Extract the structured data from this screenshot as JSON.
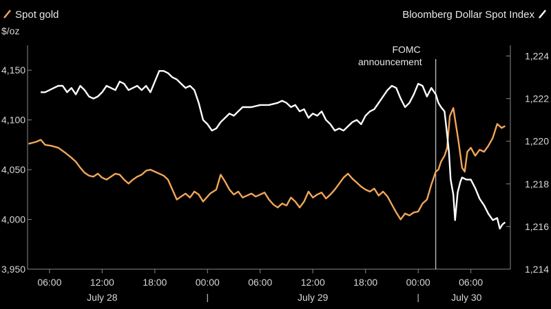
{
  "chart_data": {
    "type": "line",
    "legend": [
      {
        "name": "Spot gold",
        "color": "#f2a65a"
      },
      {
        "name": "Bloomberg Dollar Spot Index",
        "color": "#ffffff"
      }
    ],
    "left_axis": {
      "unit": "$/oz",
      "ticks": [
        "4,150",
        "4,100",
        "4,050",
        "4,000",
        "3,950"
      ],
      "range": [
        3950,
        4175
      ]
    },
    "right_axis": {
      "ticks": [
        "1,224",
        "1,222",
        "1,220",
        "1,218",
        "1,216",
        "1,214"
      ],
      "range": [
        1214,
        1224.5
      ]
    },
    "x_axis": {
      "unit": "hours from July 28 00:00",
      "range": [
        3.5,
        58.5
      ],
      "ticks": [
        {
          "label": "06:00",
          "t": 6
        },
        {
          "label": "12:00",
          "t": 12
        },
        {
          "label": "18:00",
          "t": 18
        },
        {
          "label": "00:00",
          "t": 24
        },
        {
          "label": "06:00",
          "t": 30
        },
        {
          "label": "12:00",
          "t": 36
        },
        {
          "label": "18:00",
          "t": 42
        },
        {
          "label": "00:00",
          "t": 48
        },
        {
          "label": "06:00",
          "t": 54
        }
      ],
      "days": [
        {
          "label": "July 28",
          "t": 12
        },
        {
          "label": "July 29",
          "t": 36
        },
        {
          "label": "July 30",
          "t": 53.5
        }
      ],
      "day_separators": [
        24,
        48
      ]
    },
    "annotation": {
      "line1": "FOMC",
      "line2": "announcement",
      "t": 50
    }
  },
  "series_points": {
    "gold": [
      [
        3.6,
        4076
      ],
      [
        4.5,
        4078
      ],
      [
        5.0,
        4080
      ],
      [
        5.5,
        4075
      ],
      [
        6.2,
        4074
      ],
      [
        7,
        4072
      ],
      [
        7.8,
        4067
      ],
      [
        8.5,
        4062
      ],
      [
        9,
        4058
      ],
      [
        9.5,
        4052
      ],
      [
        10,
        4047
      ],
      [
        10.5,
        4044
      ],
      [
        11,
        4043
      ],
      [
        11.5,
        4046
      ],
      [
        12,
        4042
      ],
      [
        12.5,
        4040
      ],
      [
        13,
        4043
      ],
      [
        13.5,
        4046
      ],
      [
        14,
        4045
      ],
      [
        14.5,
        4040
      ],
      [
        15,
        4036
      ],
      [
        15.5,
        4040
      ],
      [
        16,
        4043
      ],
      [
        16.5,
        4045
      ],
      [
        17,
        4049
      ],
      [
        17.5,
        4050
      ],
      [
        18,
        4048
      ],
      [
        18.5,
        4046
      ],
      [
        19,
        4044
      ],
      [
        19.5,
        4040
      ],
      [
        20,
        4030
      ],
      [
        20.5,
        4020
      ],
      [
        21,
        4023
      ],
      [
        21.5,
        4026
      ],
      [
        22,
        4022
      ],
      [
        22.5,
        4028
      ],
      [
        23,
        4025
      ],
      [
        23.5,
        4018
      ],
      [
        24,
        4023
      ],
      [
        24.3,
        4026
      ],
      [
        25,
        4030
      ],
      [
        25.5,
        4045
      ],
      [
        26,
        4038
      ],
      [
        26.5,
        4030
      ],
      [
        27,
        4025
      ],
      [
        27.5,
        4028
      ],
      [
        28,
        4022
      ],
      [
        28.5,
        4024
      ],
      [
        29,
        4026
      ],
      [
        29.5,
        4023
      ],
      [
        30,
        4025
      ],
      [
        30.5,
        4027
      ],
      [
        31,
        4020
      ],
      [
        31.5,
        4015
      ],
      [
        32,
        4012
      ],
      [
        32.5,
        4016
      ],
      [
        33,
        4014
      ],
      [
        33.5,
        4022
      ],
      [
        34,
        4018
      ],
      [
        34.5,
        4012
      ],
      [
        35,
        4018
      ],
      [
        35.5,
        4028
      ],
      [
        36,
        4022
      ],
      [
        36.5,
        4025
      ],
      [
        37,
        4027
      ],
      [
        37.5,
        4021
      ],
      [
        38,
        4025
      ],
      [
        38.5,
        4030
      ],
      [
        39,
        4036
      ],
      [
        39.5,
        4042
      ],
      [
        40,
        4046
      ],
      [
        40.5,
        4041
      ],
      [
        41,
        4037
      ],
      [
        41.5,
        4033
      ],
      [
        42,
        4030
      ],
      [
        42.5,
        4028
      ],
      [
        43,
        4031
      ],
      [
        43.5,
        4024
      ],
      [
        44,
        4028
      ],
      [
        44.5,
        4023
      ],
      [
        45,
        4015
      ],
      [
        45.5,
        4007
      ],
      [
        46,
        4000
      ],
      [
        46.5,
        4006
      ],
      [
        47,
        4004
      ],
      [
        47.5,
        4007
      ],
      [
        48,
        4008
      ],
      [
        48.5,
        4016
      ],
      [
        49,
        4020
      ],
      [
        49.5,
        4035
      ],
      [
        50,
        4048
      ],
      [
        50.3,
        4050
      ],
      [
        50.6,
        4058
      ],
      [
        51,
        4064
      ],
      [
        51.3,
        4072
      ],
      [
        51.6,
        4104
      ],
      [
        52,
        4112
      ],
      [
        52.3,
        4095
      ],
      [
        52.6,
        4078
      ],
      [
        53,
        4052
      ],
      [
        53.3,
        4048
      ],
      [
        53.6,
        4068
      ],
      [
        54,
        4072
      ],
      [
        54.5,
        4064
      ],
      [
        55,
        4070
      ],
      [
        55.5,
        4068
      ],
      [
        56,
        4074
      ],
      [
        56.5,
        4082
      ],
      [
        57,
        4096
      ],
      [
        57.5,
        4092
      ],
      [
        57.9,
        4094
      ]
    ],
    "dollar": [
      [
        5.0,
        1222.3
      ],
      [
        5.5,
        1222.3
      ],
      [
        6,
        1222.4
      ],
      [
        6.5,
        1222.5
      ],
      [
        7,
        1222.6
      ],
      [
        7.5,
        1222.6
      ],
      [
        8,
        1222.3
      ],
      [
        8.5,
        1222.5
      ],
      [
        9,
        1222.2
      ],
      [
        9.5,
        1222.6
      ],
      [
        10,
        1222.4
      ],
      [
        10.5,
        1222.1
      ],
      [
        11,
        1222.0
      ],
      [
        11.5,
        1222.1
      ],
      [
        12,
        1222.3
      ],
      [
        12.5,
        1222.6
      ],
      [
        13,
        1222.5
      ],
      [
        13.5,
        1222.4
      ],
      [
        14,
        1222.8
      ],
      [
        14.5,
        1222.7
      ],
      [
        15,
        1222.4
      ],
      [
        15.5,
        1222.5
      ],
      [
        16,
        1222.6
      ],
      [
        16.5,
        1222.4
      ],
      [
        17,
        1222.6
      ],
      [
        17.5,
        1222.3
      ],
      [
        18,
        1222.8
      ],
      [
        18.5,
        1223.3
      ],
      [
        19,
        1223.3
      ],
      [
        19.5,
        1223.2
      ],
      [
        20,
        1223.0
      ],
      [
        20.5,
        1222.9
      ],
      [
        21,
        1222.7
      ],
      [
        21.5,
        1222.5
      ],
      [
        22,
        1222.6
      ],
      [
        22.5,
        1222.4
      ],
      [
        23,
        1221.8
      ],
      [
        23.5,
        1221.0
      ],
      [
        24,
        1220.8
      ],
      [
        24.5,
        1220.5
      ],
      [
        25,
        1220.6
      ],
      [
        25.5,
        1220.9
      ],
      [
        26,
        1221.1
      ],
      [
        26.5,
        1221.3
      ],
      [
        27,
        1221.2
      ],
      [
        27.5,
        1221.4
      ],
      [
        28,
        1221.6
      ],
      [
        29,
        1221.6
      ],
      [
        30,
        1221.7
      ],
      [
        31,
        1221.7
      ],
      [
        32,
        1221.8
      ],
      [
        32.5,
        1221.9
      ],
      [
        33,
        1221.8
      ],
      [
        33.5,
        1221.6
      ],
      [
        34,
        1221.7
      ],
      [
        34.5,
        1221.4
      ],
      [
        35,
        1221.5
      ],
      [
        35.5,
        1221.1
      ],
      [
        36,
        1221.3
      ],
      [
        36.5,
        1221.2
      ],
      [
        37,
        1221.4
      ],
      [
        37.5,
        1221.0
      ],
      [
        38,
        1220.8
      ],
      [
        38.5,
        1220.5
      ],
      [
        39,
        1220.6
      ],
      [
        39.5,
        1220.5
      ],
      [
        40,
        1220.7
      ],
      [
        40.5,
        1220.9
      ],
      [
        41,
        1221.0
      ],
      [
        41.5,
        1220.8
      ],
      [
        42,
        1221.2
      ],
      [
        42.5,
        1221.4
      ],
      [
        43,
        1221.5
      ],
      [
        43.5,
        1221.8
      ],
      [
        44,
        1222.1
      ],
      [
        44.5,
        1222.4
      ],
      [
        45,
        1222.6
      ],
      [
        45.5,
        1222.5
      ],
      [
        46,
        1222.0
      ],
      [
        46.5,
        1221.6
      ],
      [
        47,
        1221.8
      ],
      [
        47.5,
        1222.2
      ],
      [
        48,
        1222.7
      ],
      [
        48.5,
        1222.6
      ],
      [
        49,
        1222.1
      ],
      [
        49.5,
        1222.5
      ],
      [
        50,
        1222.2
      ],
      [
        50.3,
        1221.8
      ],
      [
        50.6,
        1221.6
      ],
      [
        51,
        1221.4
      ],
      [
        51.3,
        1220.3
      ],
      [
        51.5,
        1219.5
      ],
      [
        51.7,
        1218.2
      ],
      [
        52,
        1217.5
      ],
      [
        52.2,
        1216.3
      ],
      [
        52.5,
        1217.6
      ],
      [
        52.8,
        1218.1
      ],
      [
        53,
        1218.3
      ],
      [
        53.5,
        1218.2
      ],
      [
        54,
        1218.2
      ],
      [
        54.5,
        1217.8
      ],
      [
        55,
        1217.3
      ],
      [
        55.5,
        1217.0
      ],
      [
        56,
        1216.6
      ],
      [
        56.5,
        1216.3
      ],
      [
        57,
        1216.4
      ],
      [
        57.3,
        1215.9
      ],
      [
        57.6,
        1216.1
      ],
      [
        57.9,
        1216.2
      ]
    ]
  }
}
